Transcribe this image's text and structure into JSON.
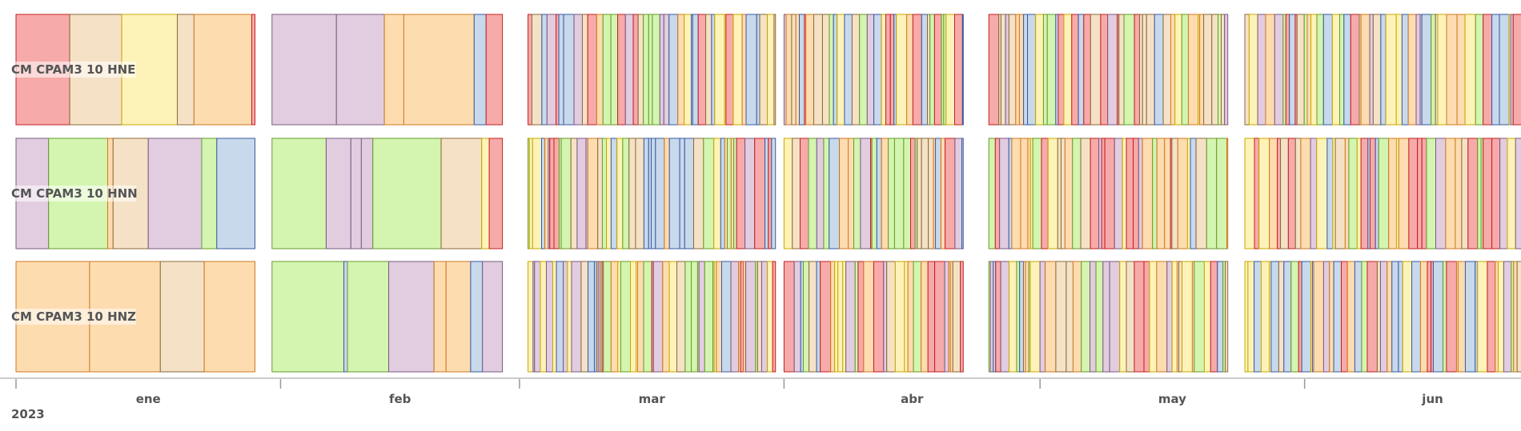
{
  "chart_data": {
    "type": "timeline",
    "year": "2023",
    "months": [
      "ene",
      "feb",
      "mar",
      "abr",
      "may",
      "jun"
    ],
    "rows": [
      "CM CPAM3 10 HNE",
      "CM CPAM3 10 HNN",
      "CM CPAM3 10 HNZ"
    ],
    "palette": [
      {
        "fill": "#d3f5b0",
        "stroke": "#6a9a2a"
      },
      {
        "fill": "#e2cde0",
        "stroke": "#7a5a80"
      },
      {
        "fill": "#f7aaaa",
        "stroke": "#c02020"
      },
      {
        "fill": "#c8d9ec",
        "stroke": "#3a5aa0"
      },
      {
        "fill": "#fdf3b8",
        "stroke": "#c8a800"
      },
      {
        "fill": "#fddcb0",
        "stroke": "#d07820"
      },
      {
        "fill": "#f5e2c6",
        "stroke": "#8a6a3a"
      }
    ],
    "gaps": [
      [
        "2023-01-29",
        "2023-01-31"
      ],
      [
        "2023-02-27",
        "2023-03-02"
      ],
      [
        "2023-03-31",
        "2023-04-01"
      ],
      [
        "2023-04-22",
        "2023-04-25"
      ],
      [
        "2023-05-23",
        "2023-05-25"
      ]
    ],
    "coverage_end": "2023-06-30"
  }
}
